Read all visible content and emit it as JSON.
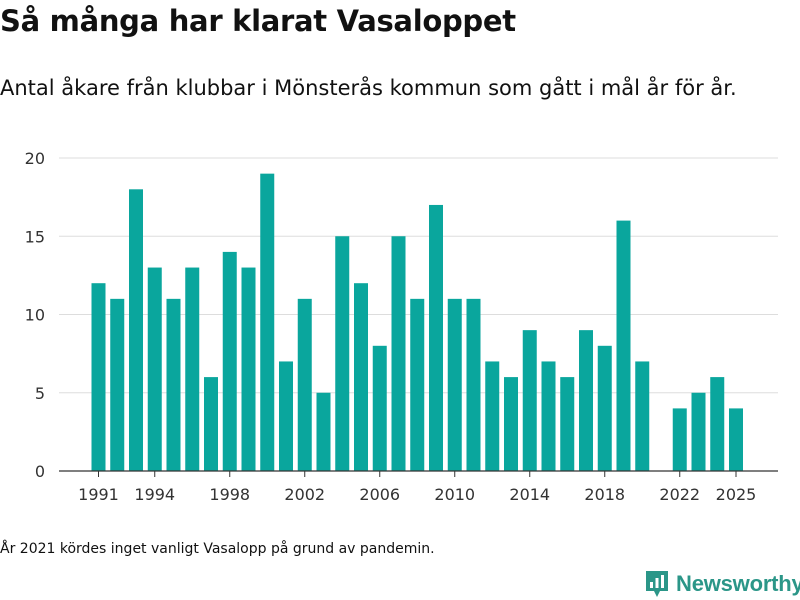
{
  "header": {
    "title": "Så många har klarat Vasaloppet",
    "subtitle": "Antal åkare från klubbar i Mönsterås kommun som gått i mål år för år."
  },
  "footnote": "År 2021 kördes inget vanligt Vasalopp på grund av pandemin.",
  "brand": {
    "name": "Newsworthy",
    "color": "#2b9688"
  },
  "colors": {
    "bar": "#0aa69d",
    "grid": "#dddddd",
    "axis": "#333333",
    "tick_text": "#333333"
  },
  "chart_data": {
    "type": "bar",
    "title": "Så många har klarat Vasaloppet",
    "xlabel": "",
    "ylabel": "",
    "ylim": [
      0,
      20
    ],
    "yticks": [
      0,
      5,
      10,
      15,
      20
    ],
    "xticks": [
      1991,
      1994,
      1998,
      2002,
      2006,
      2010,
      2014,
      2018,
      2022,
      2025
    ],
    "grid": true,
    "categories": [
      1991,
      1992,
      1993,
      1994,
      1995,
      1996,
      1997,
      1998,
      1999,
      2000,
      2001,
      2002,
      2003,
      2004,
      2005,
      2006,
      2007,
      2008,
      2009,
      2010,
      2011,
      2012,
      2013,
      2014,
      2015,
      2016,
      2017,
      2018,
      2019,
      2020,
      2021,
      2022,
      2023,
      2024,
      2025
    ],
    "values": [
      12,
      11,
      18,
      13,
      11,
      13,
      6,
      14,
      13,
      19,
      7,
      11,
      5,
      15,
      12,
      8,
      15,
      11,
      17,
      11,
      11,
      7,
      6,
      9,
      7,
      6,
      9,
      8,
      16,
      7,
      null,
      4,
      5,
      6,
      4
    ]
  }
}
